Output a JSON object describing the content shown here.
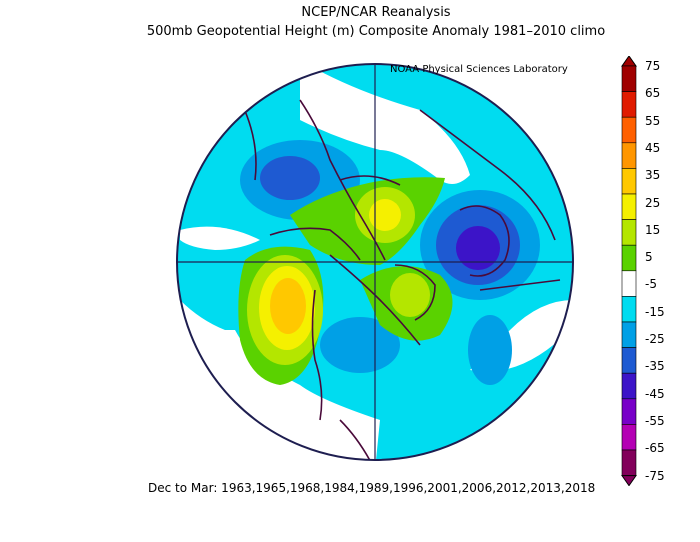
{
  "header": {
    "title": "NCEP/NCAR Reanalysis",
    "subtitle": "500mb Geopotential Height (m) Composite Anomaly 1981–2010 climo",
    "credit": "NOAA Physical Sciences Laboratory"
  },
  "footer": {
    "period_text": "Dec to Mar: 1963,1965,1968,1984,1989,1996,2001,2006,2012,2013,2018"
  },
  "colorbar": {
    "labels": [
      "75",
      "65",
      "55",
      "45",
      "35",
      "25",
      "15",
      "5",
      "-5",
      "-15",
      "-25",
      "-35",
      "-45",
      "-55",
      "-65",
      "-75"
    ],
    "colors": [
      "#a00000",
      "#e01b00",
      "#ff6000",
      "#ff9600",
      "#ffc800",
      "#f5f000",
      "#b4e600",
      "#5ad200",
      "#ffffff",
      "#00dcf0",
      "#00a0e6",
      "#1e5ad2",
      "#3c14c8",
      "#7800c8",
      "#b400b4",
      "#82005a"
    ]
  },
  "map": {
    "projection": "north-polar-stereographic",
    "anomalies": [
      {
        "name": "north-pacific-positive",
        "sign": "positive",
        "peak_m": 45
      },
      {
        "name": "arctic-greenland-positive",
        "sign": "positive",
        "peak_m": 30
      },
      {
        "name": "hudson-bay-positive",
        "sign": "positive",
        "peak_m": 25
      },
      {
        "name": "north-atlantic-europe-negative",
        "sign": "negative",
        "peak_m": -30
      },
      {
        "name": "eastern-us-negative",
        "sign": "negative",
        "peak_m": -15
      },
      {
        "name": "siberia-negative",
        "sign": "negative",
        "peak_m": -25
      }
    ]
  }
}
